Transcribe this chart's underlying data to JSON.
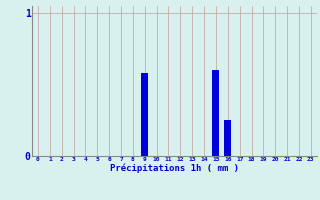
{
  "hours": [
    0,
    1,
    2,
    3,
    4,
    5,
    6,
    7,
    8,
    9,
    10,
    11,
    12,
    13,
    14,
    15,
    16,
    17,
    18,
    19,
    20,
    21,
    22,
    23
  ],
  "values": [
    0,
    0,
    0,
    0,
    0,
    0,
    0,
    0,
    0,
    0.58,
    0,
    0,
    0,
    0,
    0,
    0.6,
    0.25,
    0,
    0,
    0,
    0,
    0,
    0,
    0
  ],
  "bar_color": "#0000dd",
  "background_color": "#d8f0ee",
  "vgrid_color": "#c0a0a0",
  "hgrid_color": "#c0a0a0",
  "xlabel": "Précipitations 1h ( mm )",
  "xlabel_color": "#0000cc",
  "ytick_color": "#0000cc",
  "xtick_color": "#0000cc",
  "ylim": [
    0,
    1.05
  ],
  "xlim": [
    -0.5,
    23.5
  ],
  "figsize": [
    3.2,
    2.0
  ],
  "dpi": 100
}
